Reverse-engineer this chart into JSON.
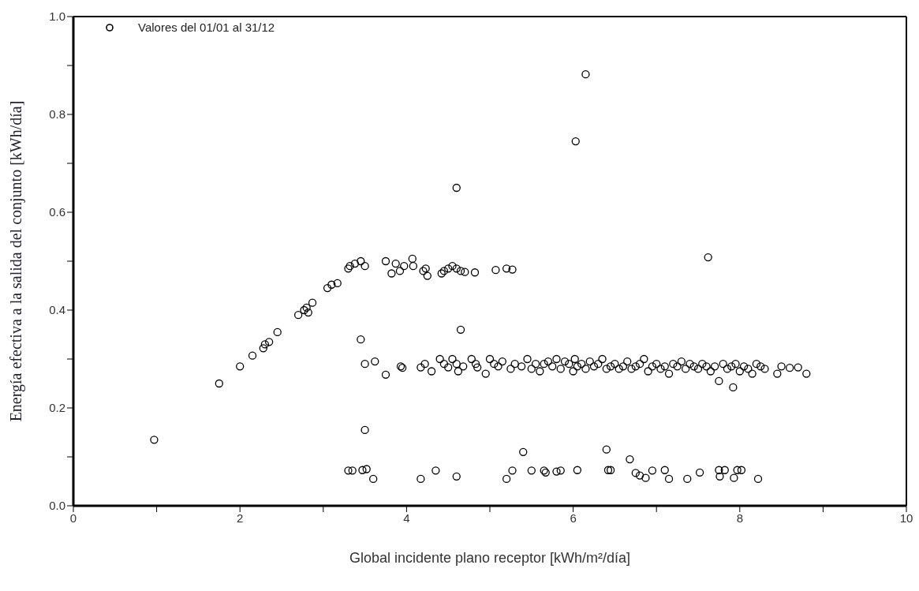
{
  "chart_data": {
    "type": "scatter",
    "xlabel": "Global incidente plano receptor [kWh/m²/día]",
    "ylabel": "Energía efectiva a la salida del conjunto [kWh/día]",
    "xlim": [
      0,
      10
    ],
    "ylim": [
      0,
      1
    ],
    "xticks": [
      0,
      {
        "value": 1,
        "label": null
      },
      2,
      {
        "value": 3,
        "label": null
      },
      4,
      {
        "value": 5,
        "label": null
      },
      6,
      {
        "value": 7,
        "label": null
      },
      8,
      {
        "value": 9,
        "label": null
      },
      10
    ],
    "yticks": [
      {
        "value": 0,
        "label": "0.0"
      },
      {
        "value": 0.1,
        "label": null
      },
      0.2,
      {
        "value": 0.3,
        "label": null
      },
      0.4,
      {
        "value": 0.5,
        "label": null
      },
      0.6,
      {
        "value": 0.7,
        "label": null
      },
      0.8,
      {
        "value": 0.9,
        "label": null
      },
      {
        "value": 1,
        "label": "1.0"
      }
    ],
    "legend": "top left",
    "marker": "circle",
    "series": [
      {
        "name": "Valores del 01/01 al 31/12",
        "color": "#000000",
        "x": [
          0.97,
          1.75,
          2.0,
          2.15,
          2.28,
          2.3,
          2.35,
          2.45,
          2.7,
          2.77,
          2.8,
          2.82,
          2.87,
          3.05,
          3.1,
          3.17,
          3.3,
          3.32,
          3.38,
          3.45,
          3.5,
          3.75,
          3.82,
          3.87,
          3.92,
          3.97,
          4.07,
          4.08,
          4.2,
          4.23,
          4.25,
          4.42,
          4.45,
          4.5,
          4.55,
          4.6,
          4.65,
          4.7,
          4.82,
          5.07,
          5.2,
          5.27,
          4.6,
          6.03,
          6.15,
          7.62,
          4.65,
          3.45,
          3.5,
          3.3,
          3.35,
          3.47,
          3.52,
          3.6,
          4.17,
          4.35,
          4.6,
          5.2,
          5.27,
          5.4,
          5.5,
          5.65,
          5.67,
          5.8,
          5.85,
          6.05,
          6.4,
          6.42,
          6.45,
          6.68,
          6.75,
          6.8,
          6.87,
          6.95,
          7.1,
          7.15,
          7.37,
          7.52,
          7.75,
          7.76,
          7.82,
          7.93,
          7.97,
          8.02,
          8.22,
          3.5,
          3.62,
          3.75,
          3.93,
          3.95,
          4.17,
          4.22,
          4.3,
          4.4,
          4.45,
          4.5,
          4.55,
          4.6,
          4.62,
          4.68,
          4.78,
          4.83,
          4.85,
          4.95,
          5.0,
          5.05,
          5.1,
          5.15,
          5.25,
          5.3,
          5.38,
          5.45,
          5.5,
          5.55,
          5.6,
          5.65,
          5.7,
          5.75,
          5.8,
          5.85,
          5.9,
          5.95,
          6.0,
          6.02,
          6.05,
          6.1,
          6.15,
          6.2,
          6.25,
          6.3,
          6.35,
          6.4,
          6.45,
          6.5,
          6.55,
          6.6,
          6.65,
          6.7,
          6.75,
          6.8,
          6.85,
          6.9,
          6.95,
          7.0,
          7.05,
          7.1,
          7.15,
          7.2,
          7.25,
          7.3,
          7.35,
          7.4,
          7.45,
          7.5,
          7.55,
          7.6,
          7.65,
          7.7,
          7.75,
          7.8,
          7.85,
          7.9,
          7.92,
          7.95,
          8.0,
          8.05,
          8.1,
          8.15,
          8.2,
          8.25,
          8.3,
          8.45,
          8.5,
          8.6,
          8.7,
          8.8
        ],
        "values": [
          0.135,
          0.25,
          0.285,
          0.307,
          0.322,
          0.33,
          0.335,
          0.355,
          0.39,
          0.4,
          0.405,
          0.395,
          0.415,
          0.445,
          0.452,
          0.455,
          0.485,
          0.49,
          0.495,
          0.5,
          0.49,
          0.5,
          0.475,
          0.495,
          0.48,
          0.49,
          0.505,
          0.49,
          0.48,
          0.485,
          0.47,
          0.475,
          0.48,
          0.485,
          0.49,
          0.485,
          0.48,
          0.478,
          0.477,
          0.482,
          0.485,
          0.483,
          0.65,
          0.745,
          0.882,
          0.508,
          0.36,
          0.34,
          0.155,
          0.072,
          0.072,
          0.073,
          0.075,
          0.055,
          0.055,
          0.072,
          0.06,
          0.055,
          0.072,
          0.11,
          0.072,
          0.072,
          0.068,
          0.07,
          0.072,
          0.073,
          0.115,
          0.073,
          0.073,
          0.095,
          0.067,
          0.062,
          0.057,
          0.072,
          0.073,
          0.055,
          0.055,
          0.068,
          0.073,
          0.06,
          0.073,
          0.057,
          0.073,
          0.073,
          0.055,
          0.29,
          0.295,
          0.268,
          0.285,
          0.282,
          0.283,
          0.29,
          0.275,
          0.3,
          0.29,
          0.283,
          0.3,
          0.29,
          0.275,
          0.285,
          0.3,
          0.29,
          0.283,
          0.27,
          0.3,
          0.29,
          0.285,
          0.295,
          0.28,
          0.29,
          0.285,
          0.3,
          0.28,
          0.29,
          0.275,
          0.29,
          0.295,
          0.285,
          0.3,
          0.28,
          0.295,
          0.29,
          0.275,
          0.3,
          0.285,
          0.29,
          0.28,
          0.295,
          0.285,
          0.29,
          0.3,
          0.28,
          0.285,
          0.29,
          0.28,
          0.285,
          0.295,
          0.28,
          0.285,
          0.29,
          0.3,
          0.275,
          0.285,
          0.29,
          0.28,
          0.285,
          0.27,
          0.29,
          0.285,
          0.295,
          0.28,
          0.29,
          0.285,
          0.28,
          0.29,
          0.285,
          0.275,
          0.285,
          0.255,
          0.29,
          0.28,
          0.285,
          0.242,
          0.29,
          0.275,
          0.285,
          0.28,
          0.27,
          0.29,
          0.285,
          0.28,
          0.27,
          0.285,
          0.282,
          0.283,
          0.27
        ]
      }
    ]
  }
}
